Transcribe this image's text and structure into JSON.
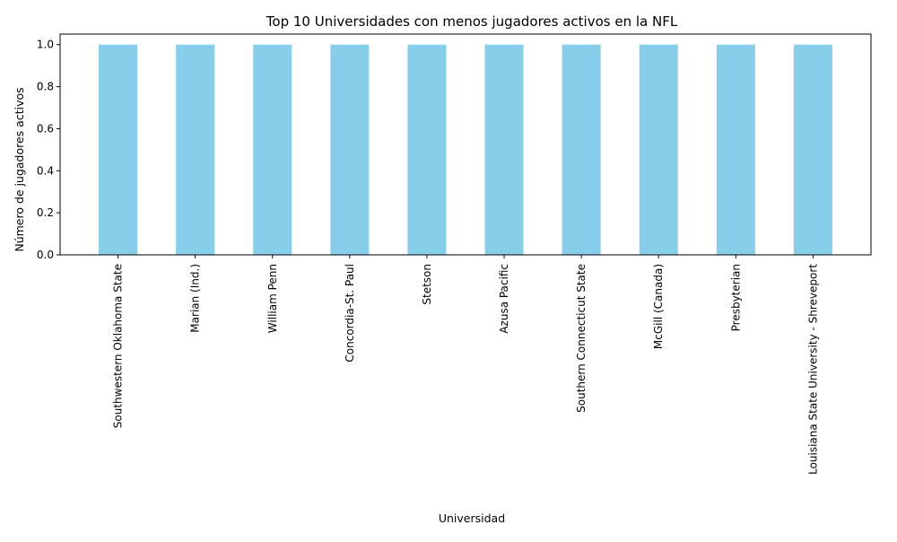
{
  "chart_data": {
    "type": "bar",
    "title": "Top 10 Universidades con menos jugadores activos en la NFL",
    "xlabel": "Universidad",
    "ylabel": "Número de jugadores activos",
    "categories": [
      "Southwestern Oklahoma State",
      "Marian (Ind.)",
      "William Penn",
      "Concordia-St. Paul",
      "Stetson",
      "Azusa Pacific",
      "Southern Connecticut State",
      "McGill (Canada)",
      "Presbyterian",
      "Louisiana State University - Shreveport"
    ],
    "values": [
      1,
      1,
      1,
      1,
      1,
      1,
      1,
      1,
      1,
      1
    ],
    "ylim": [
      0,
      1.05
    ],
    "yticks": [
      "0.0",
      "0.2",
      "0.4",
      "0.6",
      "0.8",
      "1.0"
    ],
    "bar_color": "#87ceeb",
    "grid": false
  }
}
